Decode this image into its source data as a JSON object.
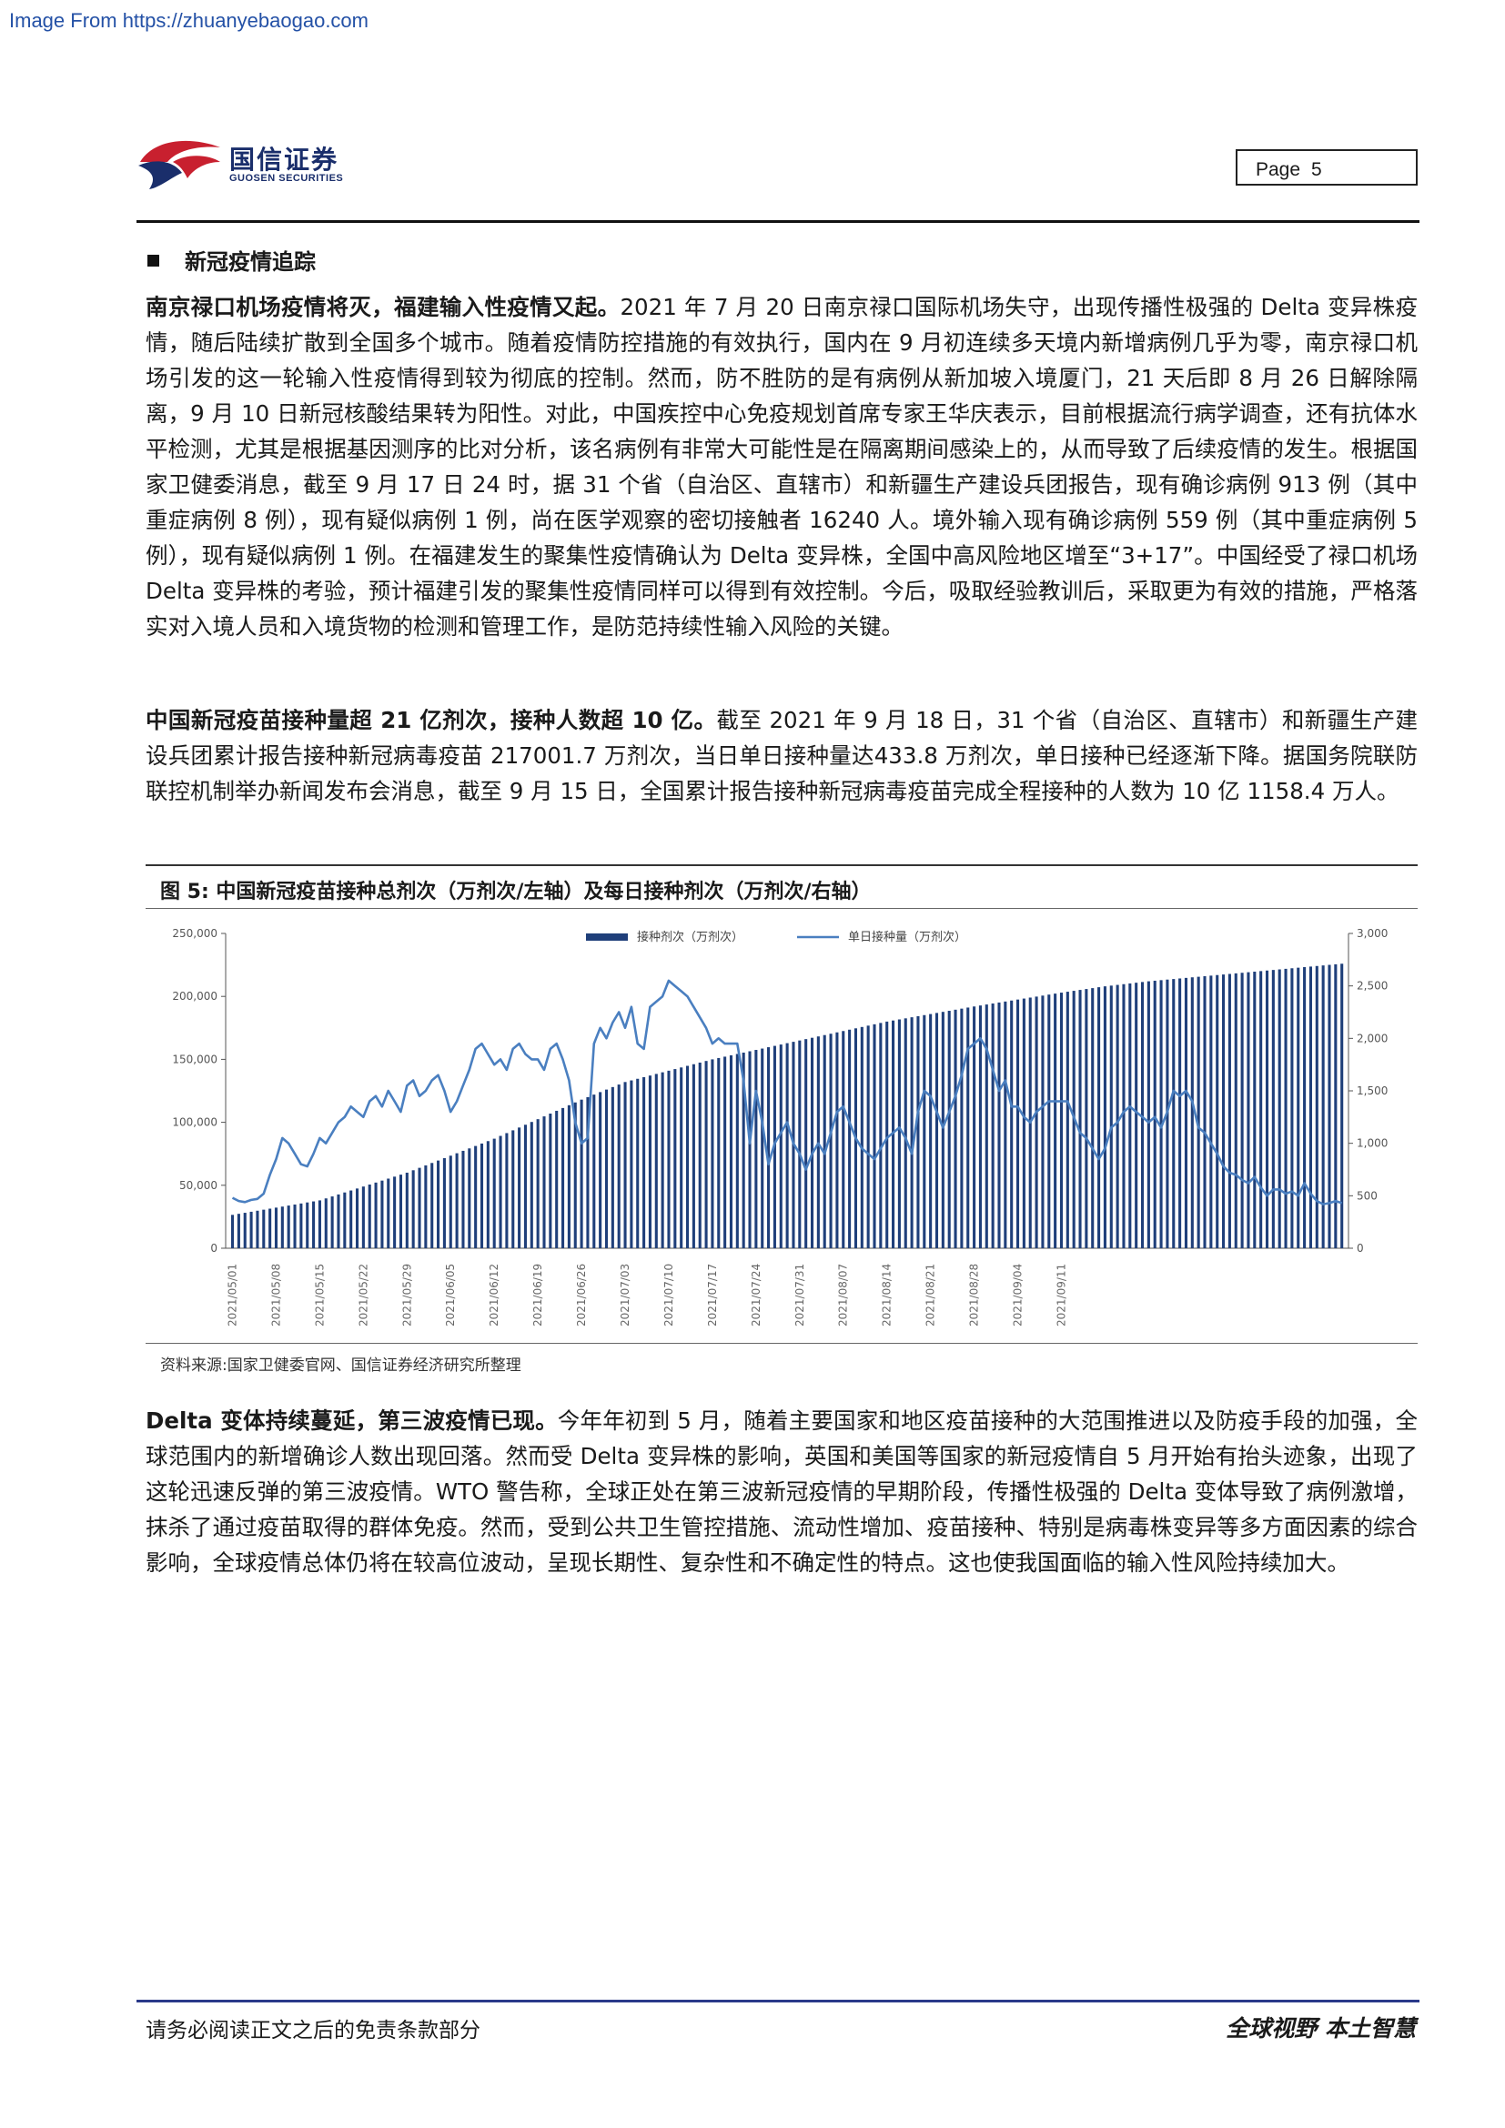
{
  "watermark": "Image From https://zhuanyebaogao.com",
  "header": {
    "logo_cn": "国信证券",
    "logo_en": "GUOSEN SECURITIES",
    "page_label": "Page",
    "page_number": "5"
  },
  "section": {
    "title": "新冠疫情追踪"
  },
  "paragraphs": {
    "p1_lead": "南京禄口机场疫情将灭，福建输入性疫情又起。",
    "p1_body": "2021 年 7 月 20 日南京禄口国际机场失守，出现传播性极强的 Delta 变异株疫情，随后陆续扩散到全国多个城市。随着疫情防控措施的有效执行，国内在 9 月初连续多天境内新增病例几乎为零，南京禄口机场引发的这一轮输入性疫情得到较为彻底的控制。然而，防不胜防的是有病例从新加坡入境厦门，21 天后即 8 月 26 日解除隔离，9 月 10 日新冠核酸结果转为阳性。对此，中国疾控中心免疫规划首席专家王华庆表示，目前根据流行病学调查，还有抗体水平检测，尤其是根据基因测序的比对分析，该名病例有非常大可能性是在隔离期间感染上的，从而导致了后续疫情的发生。根据国家卫健委消息，截至 9 月 17 日 24 时，据 31 个省（自治区、直辖市）和新疆生产建设兵团报告，现有确诊病例 913 例（其中重症病例 8 例），现有疑似病例 1 例，尚在医学观察的密切接触者 16240 人。境外输入现有确诊病例 559 例（其中重症病例 5 例），现有疑似病例 1 例。在福建发生的聚集性疫情确认为 Delta 变异株，全国中高风险地区增至“3+17”。中国经受了禄口机场 Delta 变异株的考验，预计福建引发的聚集性疫情同样可以得到有效控制。今后，吸取经验教训后，采取更为有效的措施，严格落实对入境人员和入境货物的检测和管理工作，是防范持续性输入风险的关键。",
    "p2_lead": "中国新冠疫苗接种量超 21 亿剂次，接种人数超 10 亿。",
    "p2_body": "截至 2021 年 9 月 18 日，31 个省（自治区、直辖市）和新疆生产建设兵团累计报告接种新冠病毒疫苗 217001.7 万剂次，当日单日接种量达433.8 万剂次，单日接种已经逐渐下降。据国务院联防联控机制举办新闻发布会消息，截至 9 月 15 日，全国累计报告接种新冠病毒疫苗完成全程接种的人数为 10 亿 1158.4 万人。",
    "p3_lead": "Delta 变体持续蔓延，第三波疫情已现。",
    "p3_body": "今年年初到 5 月，随着主要国家和地区疫苗接种的大范围推进以及防疫手段的加强，全球范围内的新增确诊人数出现回落。然而受 Delta 变异株的影响，英国和美国等国家的新冠疫情自 5 月开始有抬头迹象，出现了这轮迅速反弹的第三波疫情。WTO 警告称，全球正处在第三波新冠疫情的早期阶段，传播性极强的 Delta 变体导致了病例激增，抹杀了通过疫苗取得的群体免疫。然而，受到公共卫生管控措施、流动性增加、疫苗接种、特别是病毒株变异等多方面因素的综合影响，全球疫情总体仍将在较高位波动，呈现长期性、复杂性和不确定性的特点。这也使我国面临的输入性风险持续加大。"
  },
  "figure": {
    "title": "图 5:  中国新冠疫苗接种总剂次（万剂次/左轴）及每日接种剂次（万剂次/右轴）",
    "source": "资料来源:国家卫健委官网、国信证券经济研究所整理"
  },
  "chart_data": {
    "type": "bar+line",
    "legend": [
      "接种剂次（万剂次）",
      "单日接种量（万剂次）"
    ],
    "legend_position": "top-center",
    "y_left_ticks": [
      "250,000",
      "200,000",
      "150,000",
      "100,000",
      "50,000",
      "0"
    ],
    "y_right_ticks": [
      "3,000",
      "2,500",
      "2,000",
      "1,500",
      "1,000",
      "500",
      "0"
    ],
    "ylim_left": [
      0,
      250000
    ],
    "ylim_right": [
      0,
      3000
    ],
    "x_tick_labels": [
      "2021/05/01",
      "2021/05/08",
      "2021/05/15",
      "2021/05/22",
      "2021/05/29",
      "2021/06/05",
      "2021/06/12",
      "2021/06/19",
      "2021/06/26",
      "2021/07/03",
      "2021/07/10",
      "2021/07/17",
      "2021/07/24",
      "2021/07/31",
      "2021/08/07",
      "2021/08/14",
      "2021/08/21",
      "2021/08/28",
      "2021/09/04",
      "2021/09/11"
    ],
    "cumulative_keypoints": [
      {
        "day": 0,
        "value": 26500
      },
      {
        "day": 14,
        "value": 38000
      },
      {
        "day": 28,
        "value": 60000
      },
      {
        "day": 42,
        "value": 87000
      },
      {
        "day": 56,
        "value": 118000
      },
      {
        "day": 63,
        "value": 132000
      },
      {
        "day": 77,
        "value": 150000
      },
      {
        "day": 91,
        "value": 165000
      },
      {
        "day": 105,
        "value": 180000
      },
      {
        "day": 119,
        "value": 192000
      },
      {
        "day": 133,
        "value": 203000
      },
      {
        "day": 147,
        "value": 212000
      },
      {
        "day": 140,
        "value": 208000
      },
      {
        "day": 140,
        "value": 208000
      }
    ],
    "daily_values": [
      480,
      450,
      440,
      460,
      470,
      520,
      700,
      850,
      1050,
      1000,
      900,
      800,
      780,
      900,
      1050,
      1000,
      1100,
      1200,
      1250,
      1350,
      1300,
      1250,
      1400,
      1450,
      1350,
      1500,
      1400,
      1300,
      1550,
      1600,
      1450,
      1500,
      1600,
      1650,
      1500,
      1300,
      1400,
      1550,
      1700,
      1900,
      1950,
      1850,
      1750,
      1800,
      1700,
      1900,
      1950,
      1850,
      1800,
      1800,
      1700,
      1900,
      1950,
      1800,
      1600,
      1200,
      1000,
      1050,
      1950,
      2100,
      2000,
      2150,
      2250,
      2100,
      2300,
      1950,
      1900,
      2300,
      2350,
      2400,
      2550,
      2500,
      2450,
      2400,
      2300,
      2200,
      2100,
      1950,
      2000,
      1950,
      1950,
      1950,
      1600,
      1000,
      1500,
      1200,
      800,
      1000,
      1100,
      1200,
      1000,
      900,
      750,
      900,
      1000,
      900,
      1100,
      1300,
      1350,
      1200,
      1050,
      950,
      900,
      850,
      950,
      1050,
      1100,
      1150,
      1050,
      900,
      1300,
      1500,
      1450,
      1300,
      1150,
      1300,
      1450,
      1650,
      1900,
      1950,
      2000,
      1900,
      1700,
      1500,
      1600,
      1350,
      1350,
      1250,
      1200,
      1300,
      1350,
      1400,
      1400,
      1400,
      1400,
      1250,
      1100,
      1050,
      950,
      850,
      950,
      1150,
      1200,
      1300,
      1350,
      1300,
      1250,
      1200,
      1250,
      1150,
      1300,
      1500,
      1450,
      1500,
      1400,
      1150,
      1100,
      1000,
      900,
      780,
      720,
      700,
      650,
      620,
      680,
      580,
      500,
      560,
      560,
      520,
      540,
      500,
      620,
      520,
      450,
      420,
      430,
      450,
      430
    ]
  },
  "footer": {
    "left": "请务必阅读正文之后的免责条款部分",
    "right": "全球视野  本土智慧"
  },
  "colors": {
    "bar": "#1f3f7a",
    "line": "#4a7fc0",
    "footer_rule": "#2a3a8a",
    "logo_red": "#c8202f",
    "logo_blue": "#1a2e6b"
  }
}
